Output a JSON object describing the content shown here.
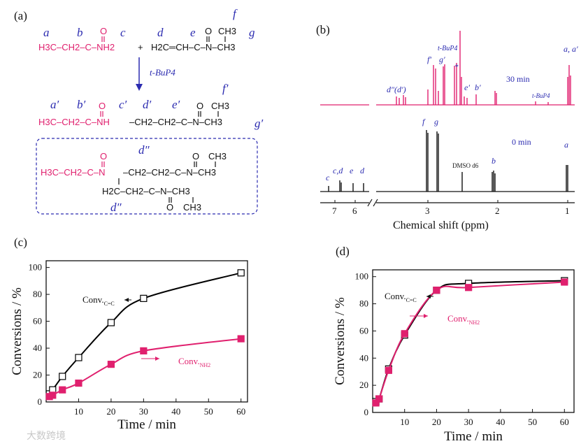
{
  "panels": {
    "a": "(a)",
    "b": "(b)",
    "c": "(c)",
    "d": "(d)"
  },
  "scheme": {
    "labels_r1": [
      "a",
      "b",
      "c",
      "d",
      "e",
      "f",
      "g"
    ],
    "acrylamide_left": "H3C–CH2–C–NH2",
    "plus": "+",
    "acrylate": "H2C═CH–C–N–CH3",
    "methyl_top": "CH3",
    "catalyst": "t-BuP4",
    "labels_r2": [
      "a′",
      "b′",
      "c′",
      "d′",
      "e′",
      "f′",
      "g′"
    ],
    "product_left": "H3C–CH2–C–NH",
    "product_right": "–CH2–CH2–C–N–CH3",
    "bis_left": "H3C–CH2–C–N",
    "bis_right": "–CH2–CH2–C–N–CH3",
    "bis_lower": "H2C–CH2–C–N–CH3",
    "bis_label": "d″",
    "oxygen": "O",
    "ch3": "CH3"
  },
  "nmr": {
    "xlabel": "Chemical shift (ppm)",
    "time_top": "30 min",
    "time_bottom": "0 min",
    "ticks_left": [
      "7",
      "6"
    ],
    "ticks_right": [
      "3",
      "2",
      "1"
    ],
    "top_labels": [
      "d″(d′)",
      "f′",
      "g′",
      "t-BuP4",
      "*",
      "e′",
      "b′",
      "t-BuP4",
      "a, a′"
    ],
    "bottom_labels": [
      "c",
      "c,d",
      "e",
      "d",
      "f",
      "g",
      "DMSO d6",
      "b",
      "a"
    ]
  },
  "chart_data": [
    {
      "type": "line",
      "panel": "c",
      "xlabel": "Time / min",
      "ylabel": "Conversions / %",
      "xlim": [
        0,
        62
      ],
      "ylim": [
        0,
        105
      ],
      "xticks": [
        10,
        20,
        30,
        40,
        50,
        60
      ],
      "yticks": [
        0,
        20,
        40,
        60,
        80,
        100
      ],
      "series": [
        {
          "name": "Conv. C=C",
          "marker": "open-square",
          "color": "#000000",
          "x": [
            1,
            2,
            5,
            10,
            20,
            30,
            60
          ],
          "y": [
            6,
            9,
            19,
            33,
            59,
            77,
            96
          ]
        },
        {
          "name": "Conv. NH2",
          "marker": "filled-square",
          "color": "#e0206e",
          "x": [
            1,
            2,
            5,
            10,
            20,
            30,
            60
          ],
          "y": [
            4,
            5,
            9,
            14,
            28,
            38,
            47
          ]
        }
      ],
      "legend": [
        "Conv.C=C",
        "Conv.NH2"
      ]
    },
    {
      "type": "line",
      "panel": "d",
      "xlabel": "Time / min",
      "ylabel": "Conversions / %",
      "xlim": [
        0,
        63
      ],
      "ylim": [
        0,
        105
      ],
      "xticks": [
        10,
        20,
        30,
        40,
        50,
        60
      ],
      "yticks": [
        0,
        20,
        40,
        60,
        80,
        100
      ],
      "series": [
        {
          "name": "Conv. C=C",
          "marker": "open-square",
          "color": "#000000",
          "x": [
            1,
            2,
            5,
            10,
            20,
            30,
            60
          ],
          "y": [
            8,
            10,
            32,
            57,
            90,
            95,
            97
          ]
        },
        {
          "name": "Conv. NH2",
          "marker": "filled-square",
          "color": "#e0206e",
          "x": [
            1,
            2,
            5,
            10,
            20,
            30,
            60
          ],
          "y": [
            7,
            10,
            31,
            58,
            90,
            92,
            96
          ]
        }
      ],
      "legend": [
        "Conv.C=C",
        "Conv.NH2"
      ]
    }
  ],
  "watermark": "大数跨境"
}
